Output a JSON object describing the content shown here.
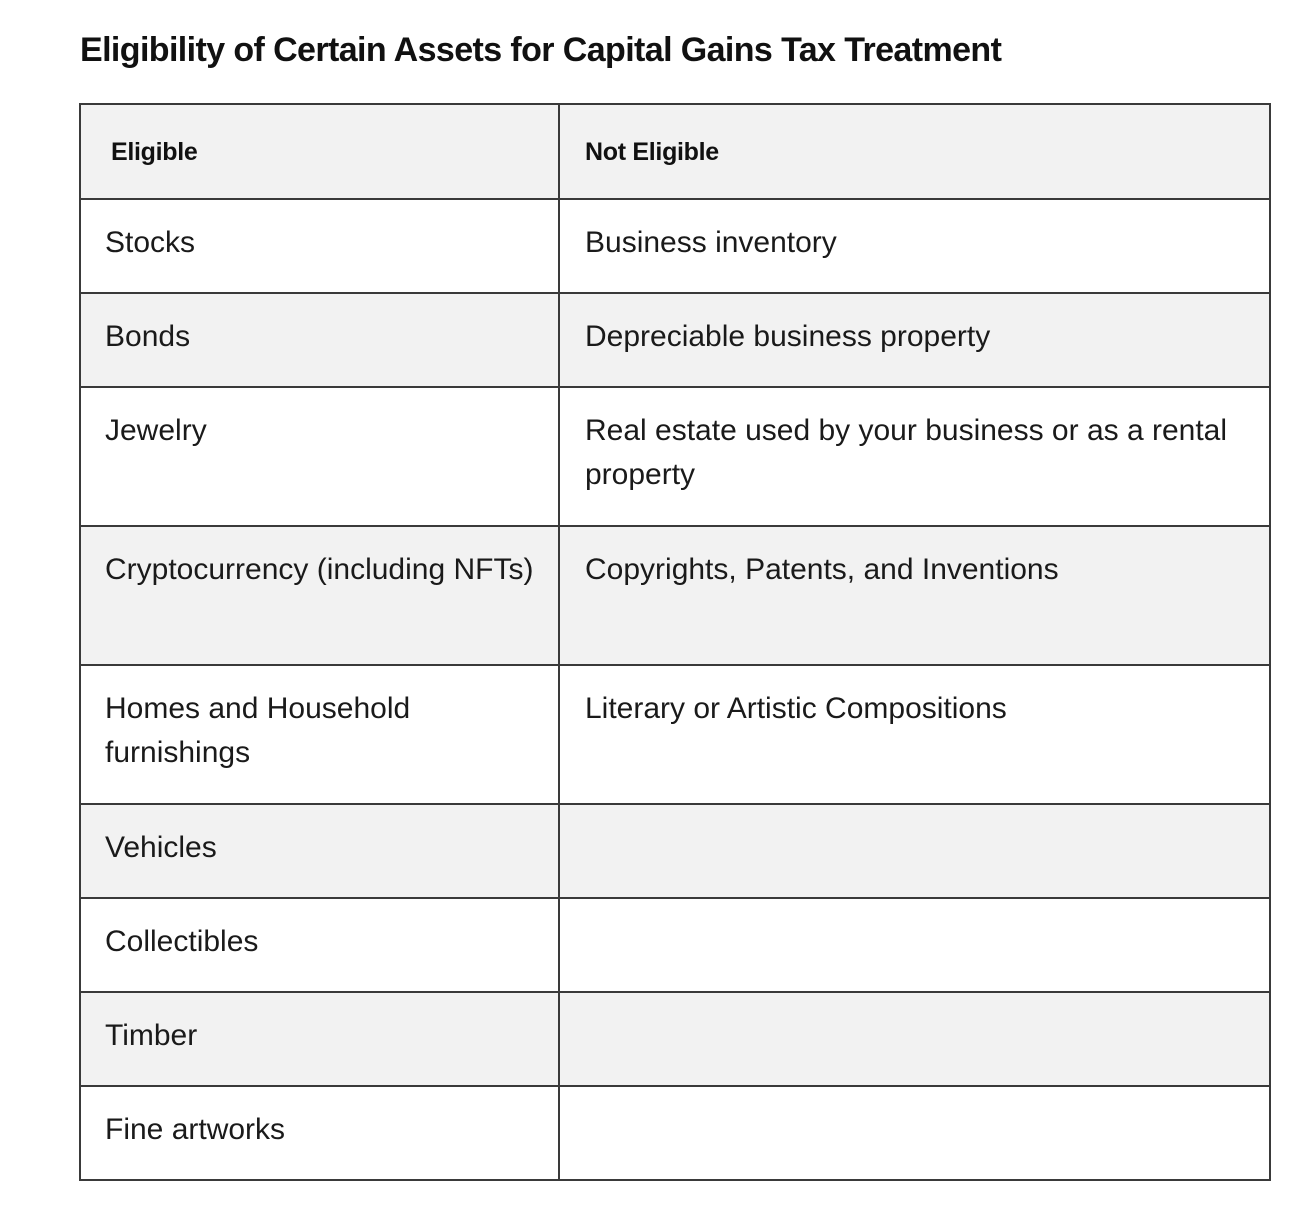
{
  "title": "Eligibility of Certain Assets for Capital Gains Tax Treatment",
  "table": {
    "headers": [
      "Eligible",
      "Not Eligible"
    ],
    "rows": [
      [
        "Stocks",
        "Business inventory"
      ],
      [
        "Bonds",
        "Depreciable business property"
      ],
      [
        "Jewelry",
        "Real estate used by your business or as a rental property"
      ],
      [
        "Cryptocurrency (including NFTs)",
        "Copyrights, Patents, and Inventions"
      ],
      [
        "Homes and Household furnishings",
        "Literary or Artistic Compositions"
      ],
      [
        "Vehicles",
        ""
      ],
      [
        "Collectibles",
        ""
      ],
      [
        "Timber",
        ""
      ],
      [
        "Fine artworks",
        ""
      ]
    ]
  }
}
